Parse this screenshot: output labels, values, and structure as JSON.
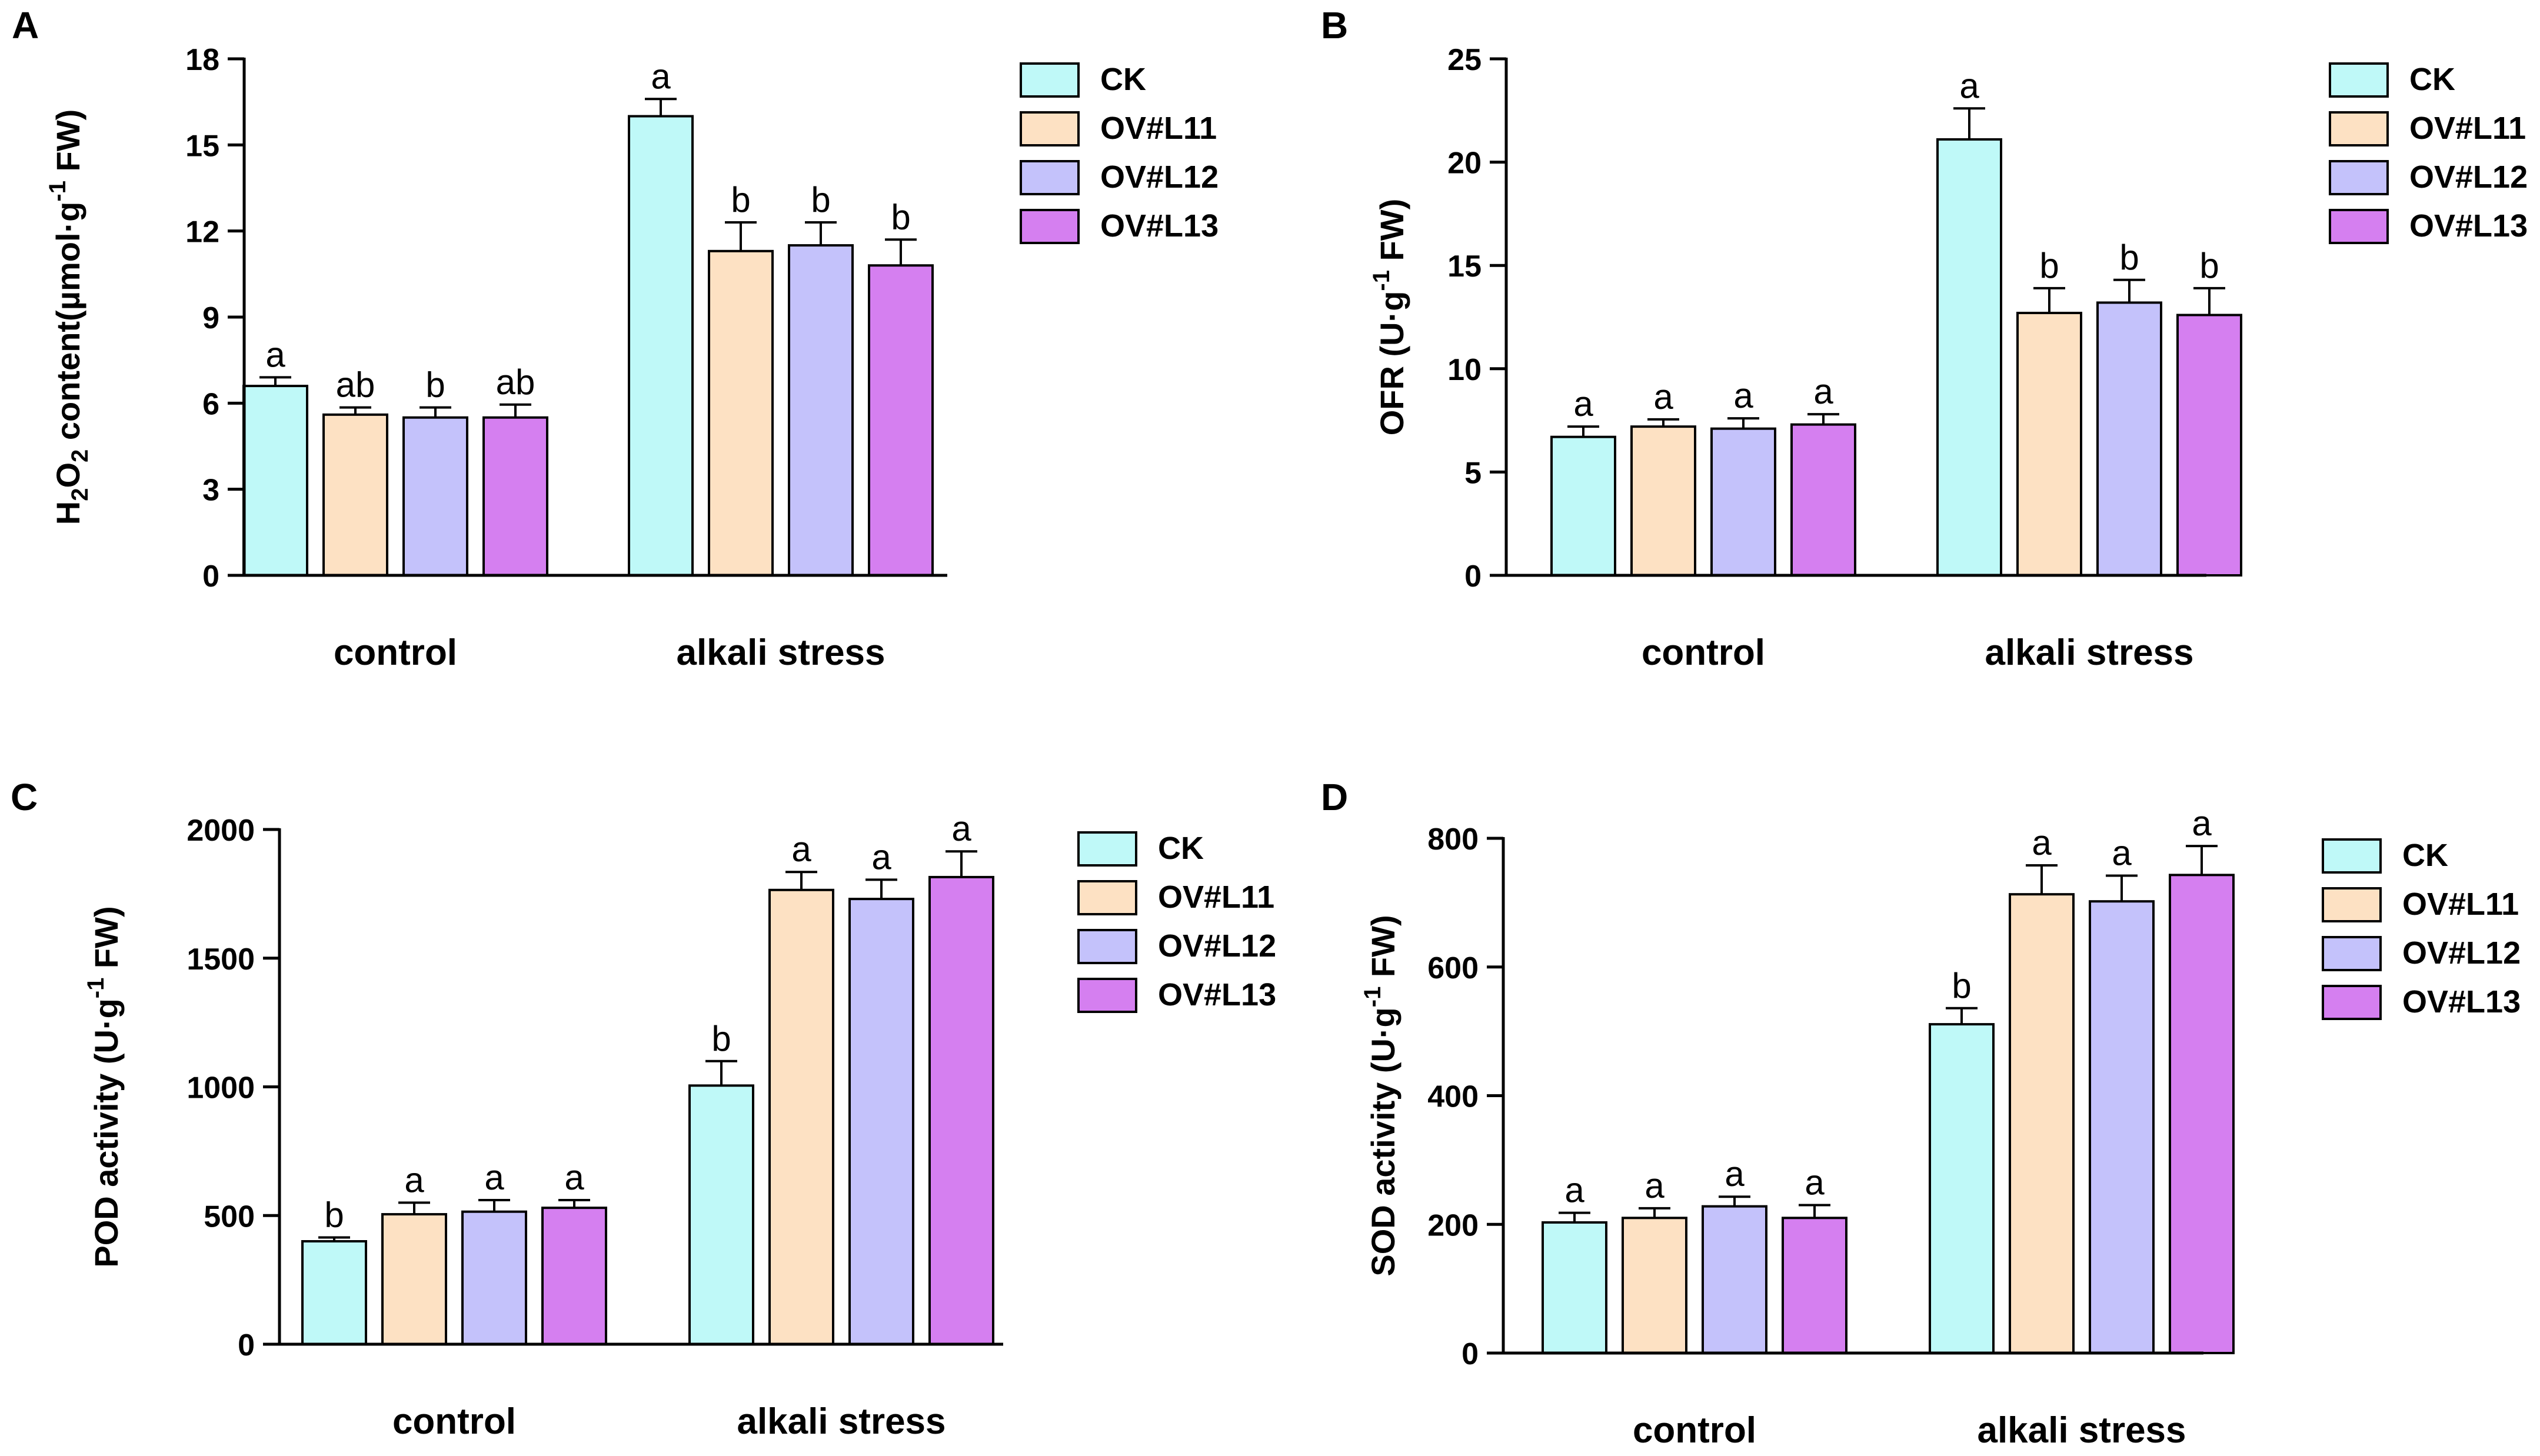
{
  "legend": [
    "CK",
    "OV#L11",
    "OV#L12",
    "OV#L13"
  ],
  "colors": [
    "#bff9f8",
    "#fde1c3",
    "#c4c2fb",
    "#d57ff0"
  ],
  "chart_data": [
    {
      "type": "bar",
      "panel": "A",
      "ylabel_parts": [
        "H",
        "2",
        "O",
        "2",
        " content(µmol·g",
        "-1",
        " FW)"
      ],
      "ylim": [
        0,
        18
      ],
      "yticks": [
        "0",
        "3",
        "6",
        "9",
        "12",
        "15",
        "18"
      ],
      "categories": [
        "control",
        "alkali stress"
      ],
      "series": [
        {
          "name": "CK",
          "values": [
            6.6,
            16.0
          ],
          "errors": [
            0.3,
            0.6
          ],
          "letters": [
            "a",
            "a"
          ]
        },
        {
          "name": "OV#L11",
          "values": [
            5.6,
            11.3
          ],
          "errors": [
            0.25,
            1.0
          ],
          "letters": [
            "ab",
            "b"
          ]
        },
        {
          "name": "OV#L12",
          "values": [
            5.5,
            11.5
          ],
          "errors": [
            0.35,
            0.8
          ],
          "letters": [
            "b",
            "b"
          ]
        },
        {
          "name": "OV#L13",
          "values": [
            5.5,
            10.8
          ],
          "errors": [
            0.45,
            0.9
          ],
          "letters": [
            "ab",
            "b"
          ]
        }
      ]
    },
    {
      "type": "bar",
      "panel": "B",
      "ylabel_parts": [
        "OFR (U·g",
        "-1",
        " FW)"
      ],
      "ylim": [
        0,
        25
      ],
      "yticks": [
        "0",
        "5",
        "10",
        "15",
        "20",
        "25"
      ],
      "categories": [
        "control",
        "alkali stress"
      ],
      "series": [
        {
          "name": "CK",
          "values": [
            6.7,
            21.1
          ],
          "errors": [
            0.5,
            1.5
          ],
          "letters": [
            "a",
            "a"
          ]
        },
        {
          "name": "OV#L11",
          "values": [
            7.2,
            12.7
          ],
          "errors": [
            0.35,
            1.2
          ],
          "letters": [
            "a",
            "b"
          ]
        },
        {
          "name": "OV#L12",
          "values": [
            7.1,
            13.2
          ],
          "errors": [
            0.5,
            1.1
          ],
          "letters": [
            "a",
            "b"
          ]
        },
        {
          "name": "OV#L13",
          "values": [
            7.3,
            12.6
          ],
          "errors": [
            0.5,
            1.3
          ],
          "letters": [
            "a",
            "b"
          ]
        }
      ]
    },
    {
      "type": "bar",
      "panel": "C",
      "ylabel_parts": [
        "POD activity (U·g",
        "-1",
        " FW)"
      ],
      "ylim": [
        0,
        2000
      ],
      "yticks": [
        "0",
        "500",
        "1000",
        "1500",
        "2000"
      ],
      "categories": [
        "control",
        "alkali stress"
      ],
      "series": [
        {
          "name": "CK",
          "values": [
            400,
            1005
          ],
          "errors": [
            15,
            95
          ],
          "letters": [
            "b",
            "b"
          ]
        },
        {
          "name": "OV#L11",
          "values": [
            505,
            1765
          ],
          "errors": [
            45,
            70
          ],
          "letters": [
            "a",
            "a"
          ]
        },
        {
          "name": "OV#L12",
          "values": [
            515,
            1730
          ],
          "errors": [
            45,
            75
          ],
          "letters": [
            "a",
            "a"
          ]
        },
        {
          "name": "OV#L13",
          "values": [
            530,
            1815
          ],
          "errors": [
            30,
            100
          ],
          "letters": [
            "a",
            "a"
          ]
        }
      ]
    },
    {
      "type": "bar",
      "panel": "D",
      "ylabel_parts": [
        "SOD activity (U·g",
        "-1",
        " FW)"
      ],
      "ylim": [
        0,
        800
      ],
      "yticks": [
        "0",
        "200",
        "400",
        "600",
        "800"
      ],
      "categories": [
        "control",
        "alkali stress"
      ],
      "series": [
        {
          "name": "CK",
          "values": [
            203,
            511
          ],
          "errors": [
            15,
            25
          ],
          "letters": [
            "a",
            "b"
          ]
        },
        {
          "name": "OV#L11",
          "values": [
            210,
            713
          ],
          "errors": [
            15,
            45
          ],
          "letters": [
            "a",
            "a"
          ]
        },
        {
          "name": "OV#L12",
          "values": [
            228,
            702
          ],
          "errors": [
            15,
            40
          ],
          "letters": [
            "a",
            "a"
          ]
        },
        {
          "name": "OV#L13",
          "values": [
            210,
            743
          ],
          "errors": [
            20,
            45
          ],
          "letters": [
            "a",
            "a"
          ]
        }
      ]
    }
  ]
}
